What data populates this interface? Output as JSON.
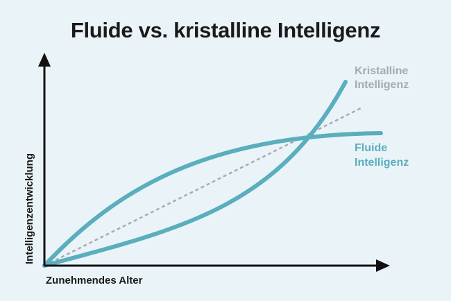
{
  "title": "Fluide vs. kristalline Intelligenz",
  "axes": {
    "x_label": "Zunehmendes Alter",
    "y_label": "Intelligenzentwicklung"
  },
  "curves": {
    "crystalline": {
      "label_line1": "Kristalline",
      "label_line2": "Intelligenz"
    },
    "fluid": {
      "label_line1": "Fluide",
      "label_line2": "Intelligenz"
    }
  },
  "colors": {
    "background": "#eaf4f8",
    "curve": "#5aaebd",
    "dashed_line": "#a7acaf",
    "crystalline_label": "#a3abb0",
    "fluid_label": "#5aaebd",
    "axis": "#111111"
  }
}
